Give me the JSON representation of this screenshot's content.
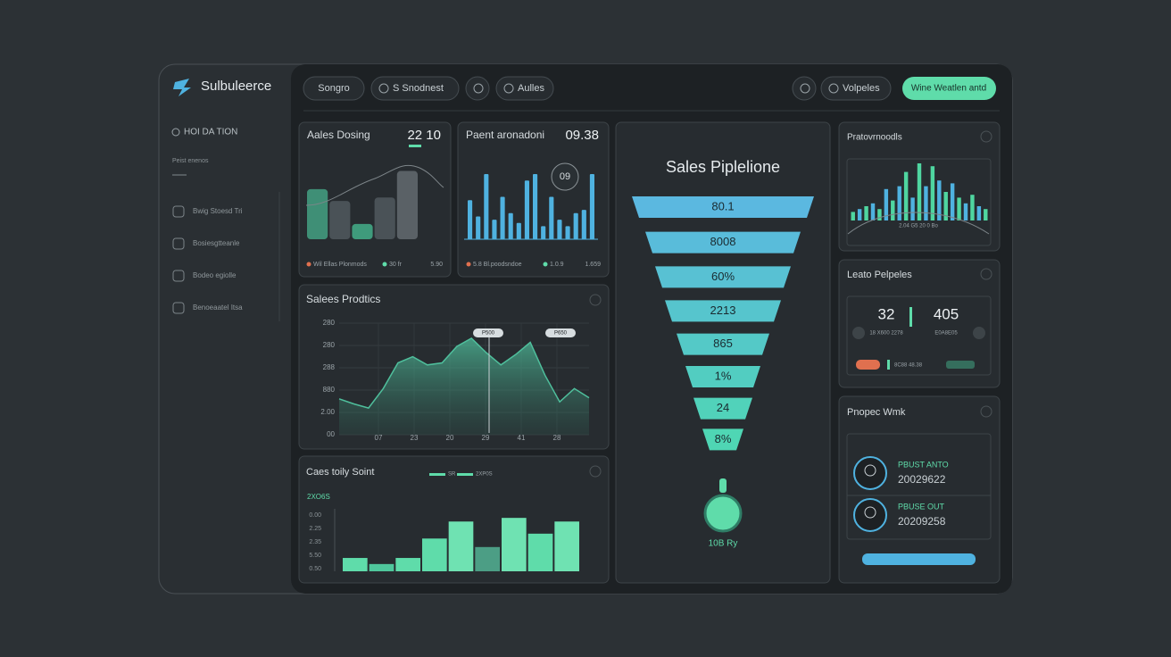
{
  "app": {
    "logo": "Sulbuleerce",
    "toolbar": {
      "search": "Songro",
      "filter": "S Snodnest",
      "action": "Aulles",
      "user": "Volpeles",
      "cta": "Wine Weatlen antd"
    }
  },
  "sidebar": {
    "section": "HOI DA TION",
    "subsection": "Peist enenos",
    "items": [
      "Bwig Stoesd Tri",
      "Bosiesgtteanle",
      "Bodeo egiolle",
      "Benoeaatel Itsa"
    ]
  },
  "panels": {
    "sales_dosing": {
      "title": "Aales Dosing",
      "value": "22 10",
      "legend": [
        "Wil Ellas Plonmods",
        "30 fr",
        "5.90"
      ],
      "chart": {
        "type": "bar",
        "ylim": [
          0,
          100
        ],
        "values": [
          72,
          55,
          22,
          60,
          98
        ],
        "colors": [
          "#3f8f76",
          "#4a5257",
          "#3f9b7c",
          "#4a5257",
          "#5a6166"
        ]
      }
    },
    "paent": {
      "title": "Paent aronadoni",
      "value": "09.38",
      "badge": "09",
      "legend": [
        "5.8 Bl.poodsndoe",
        "1.0.9",
        "1.659"
      ],
      "chart": {
        "type": "bar",
        "ylim": [
          0,
          100
        ],
        "color": "#4fb2e0",
        "values": [
          60,
          35,
          100,
          30,
          65,
          40,
          25,
          90,
          100,
          20,
          65,
          30,
          20,
          40,
          45,
          100
        ]
      }
    },
    "pipeline": {
      "title": "Sales Piplelione",
      "stages": [
        "80.1",
        "8008",
        "60%",
        "2213",
        "865",
        "1%",
        "24",
        "8%"
      ],
      "footer": "10B Ry"
    },
    "sales_prodtics": {
      "title": "Salees Prodtics",
      "y_labels": [
        "280",
        "280",
        "288",
        "880",
        "2.00",
        "00"
      ],
      "x_labels": [
        "07",
        "23",
        "20",
        "29",
        "41",
        "28"
      ],
      "tooltips": [
        "P500",
        "P650"
      ],
      "chart": {
        "type": "area",
        "ylim": [
          0,
          100
        ],
        "color": "#4fbf9c",
        "values": [
          35,
          30,
          26,
          45,
          70,
          76,
          68,
          70,
          86,
          94,
          80,
          68,
          78,
          90,
          58,
          32,
          45,
          36
        ]
      }
    },
    "caes": {
      "title": "Caes toily Soint",
      "subtitle": "2XO6S",
      "legend": [
        "SR",
        "2XP0S"
      ],
      "y_labels": [
        "0.00",
        "2.25",
        "2.35",
        "5.50",
        "0.50"
      ],
      "chart": {
        "type": "bar",
        "ylim": [
          0,
          100
        ],
        "values": [
          22,
          12,
          22,
          54,
          82,
          40,
          88,
          62,
          82
        ],
        "colors": [
          "#5fdcaa",
          "#4fc79c",
          "#5fdcaa",
          "#5fdcaa",
          "#6fe2b2",
          "#4c9e85",
          "#6fe2b2",
          "#5fdcaa",
          "#6fe2b2"
        ]
      }
    },
    "pratov": {
      "title": "Pratovrnoodls",
      "caption": "2.04 G5 20 0 Bo",
      "chart": {
        "type": "bar",
        "ylim": [
          0,
          100
        ],
        "values": [
          15,
          20,
          25,
          30,
          20,
          55,
          35,
          60,
          85,
          40,
          100,
          60,
          95,
          70,
          50,
          65,
          40,
          30,
          45,
          25,
          20
        ],
        "colors": [
          "#4fd6a0",
          "#4fb2e0"
        ]
      }
    },
    "leato": {
      "title": "Leato Pelpeles",
      "stats": [
        {
          "value": "32",
          "label": "18 X600 2278"
        },
        {
          "value": "405",
          "label": "E0A8E05"
        }
      ],
      "tag": "8C88 48.38"
    },
    "pnopec": {
      "title": "Pnopec Wmk",
      "people": [
        {
          "name": "PBUST ANTO",
          "id": "20029622"
        },
        {
          "name": "PBUSE OUT",
          "id": "20209258"
        }
      ]
    }
  }
}
